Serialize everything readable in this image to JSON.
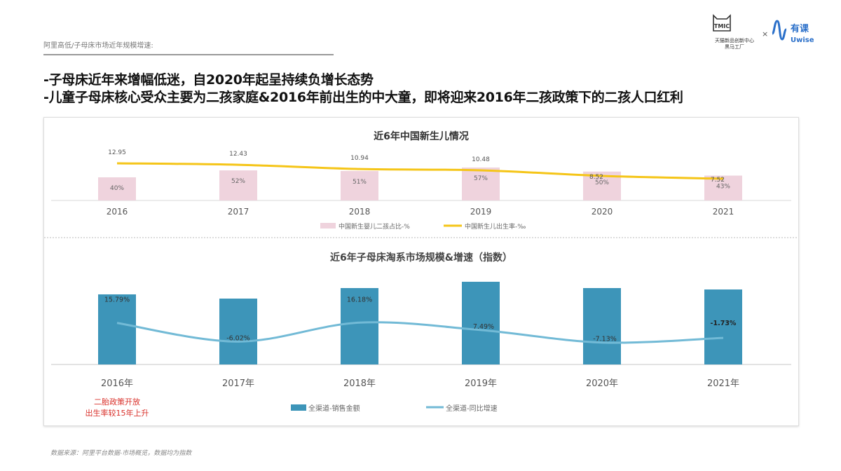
{
  "header": {
    "subtitle": "阿里高低/子母床市场近年规模增速:",
    "headlines": [
      "-子母床近年来增幅低迷，自2020年起呈持续负增长态势",
      "-儿童子母床核心受众主要为二孩家庭&2016年前出生的中大童，即将迎来2016年二孩政策下的二孩人口红利"
    ],
    "logo": {
      "left_text": "TMIC",
      "left_caption": "天猫新品创新中心 黑马工厂",
      "separator": "×",
      "right_cn": "有课",
      "right_en": "Uwise"
    }
  },
  "chart_data": [
    {
      "type": "bar+line",
      "title": "近6年中国新生儿情况",
      "categories": [
        "2016",
        "2017",
        "2018",
        "2019",
        "2020",
        "2021"
      ],
      "series": [
        {
          "name": "中国新生婴儿二孩占比-%",
          "type": "bar",
          "values": [
            40,
            52,
            51,
            57,
            50,
            43
          ],
          "labels": [
            "40%",
            "52%",
            "51%",
            "57%",
            "50%",
            "43%"
          ],
          "color": "#efd3dd"
        },
        {
          "name": "中国新生儿出生率-‰",
          "type": "line",
          "values": [
            12.95,
            12.43,
            10.94,
            10.48,
            8.52,
            7.52
          ],
          "labels": [
            "12.95",
            "12.43",
            "10.94",
            "10.48",
            "8.52",
            "7.52"
          ],
          "color": "#f5c518"
        }
      ],
      "legend": "bottom",
      "grid": false
    },
    {
      "type": "bar+line",
      "title": "近6年子母床淘系市场规模&增速（指数）",
      "categories": [
        "2016年",
        "2017年",
        "2018年",
        "2019年",
        "2020年",
        "2021年"
      ],
      "series": [
        {
          "name": "全渠道-销售金额",
          "type": "bar",
          "values": [
            100,
            94,
            109,
            118,
            109,
            107
          ],
          "color": "#3d95b9"
        },
        {
          "name": "全渠道-同比增速",
          "type": "line",
          "values": [
            15.79,
            -6.02,
            16.18,
            7.49,
            -7.13,
            -1.73
          ],
          "labels": [
            "15.79%",
            "-6.02%",
            "16.18%",
            "7.49%",
            "-7.13%",
            "-1.73%"
          ],
          "color": "#72bad6"
        }
      ],
      "annotation": [
        "二胎政策开放",
        "出生率较15年上升"
      ],
      "annotation_color": "#d9302a",
      "legend": "bottom",
      "grid": false
    }
  ],
  "footer": {
    "source": "数据来源：阿里平台数据-市场概览，数据均为指数"
  }
}
